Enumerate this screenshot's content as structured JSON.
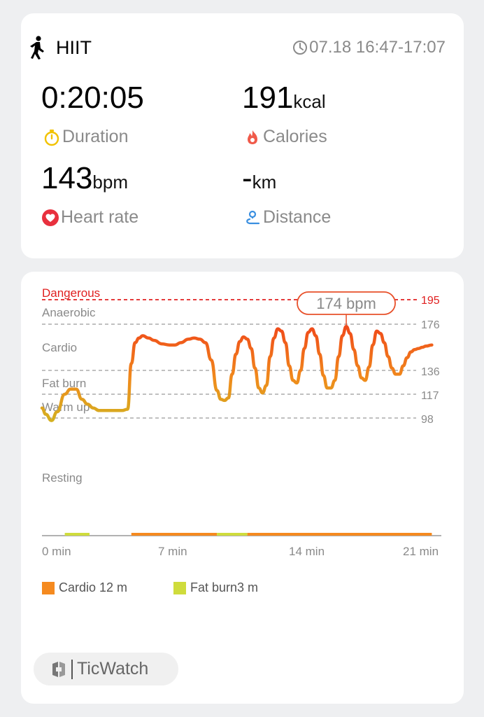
{
  "summary": {
    "activity_name": "HIIT",
    "activity_icon": "running-person-icon",
    "session_time": "07.18 16:47-17:07",
    "duration": {
      "value": "0:20:05",
      "label": "Duration",
      "icon": "stopwatch-icon",
      "icon_color": "#f2c200"
    },
    "calories": {
      "value": "191",
      "unit": "kcal",
      "label": "Calories",
      "icon": "flame-icon",
      "icon_color": "#f05a4a"
    },
    "heart_rate": {
      "value": "143",
      "unit": "bpm",
      "label": "Heart rate",
      "icon": "heart-icon",
      "icon_color": "#e8303e"
    },
    "distance": {
      "value": "-",
      "unit": "km",
      "label": "Distance",
      "icon": "route-icon",
      "icon_color": "#3a8fe0"
    }
  },
  "chart": {
    "zone_labels": {
      "dangerous": "Dangerous",
      "anaerobic": "Anaerobic",
      "cardio": "Cardio",
      "fat_burn": "Fat burn",
      "warm_up": "Warm up",
      "resting": "Resting"
    },
    "threshold_labels": {
      "t195": "195",
      "t176": "176",
      "t136": "136",
      "t117": "117",
      "t98": "98"
    },
    "x_labels": {
      "x0": "0 min",
      "x7": "7 min",
      "x14": "14 min",
      "x21": "21 min"
    },
    "peak_label": "174 bpm",
    "danger_color": "#e02020",
    "line_colors": {
      "low": "#d4b020",
      "mid": "#f08a1c",
      "high": "#f04a1a"
    }
  },
  "chart_data": {
    "type": "line",
    "title": "",
    "xlabel": "",
    "ylabel": "",
    "x_unit": "min",
    "xlim": [
      0,
      21
    ],
    "zones": [
      {
        "name": "Dangerous",
        "min_bpm": 195
      },
      {
        "name": "Anaerobic",
        "min_bpm": 176
      },
      {
        "name": "Cardio",
        "min_bpm": 136
      },
      {
        "name": "Fat burn",
        "min_bpm": 117
      },
      {
        "name": "Warm up",
        "min_bpm": 98
      },
      {
        "name": "Resting"
      }
    ],
    "series": [
      {
        "x": [
          0,
          0.2,
          0.5,
          0.8,
          1.2,
          1.5,
          1.8,
          2.1,
          2.4,
          2.7,
          3.0,
          3.3,
          3.6,
          3.9,
          4.2,
          4.5,
          4.7,
          4.9,
          5.1,
          5.3,
          5.6,
          5.9,
          6.3,
          6.7,
          7.0,
          7.3,
          7.7,
          8.0,
          8.3,
          8.6,
          8.9,
          9.2,
          9.4,
          9.6,
          9.8,
          10.0,
          10.2,
          10.4,
          10.6,
          10.8,
          11.0,
          11.2,
          11.4,
          11.6,
          11.8,
          12.0,
          12.2,
          12.4,
          12.6,
          12.8,
          13.0,
          13.2,
          13.4,
          13.6,
          13.8,
          14.0,
          14.2,
          14.4,
          14.6,
          14.8,
          15.0,
          15.2,
          15.4,
          15.6,
          15.8,
          16.0,
          16.2,
          16.4,
          16.6,
          16.8,
          17.0,
          17.2,
          17.4,
          17.6,
          17.8,
          18.0,
          18.2,
          18.4,
          18.6,
          18.8,
          19.0,
          19.2,
          19.4,
          19.6,
          19.8,
          20.0,
          20.2,
          20.5
        ],
        "y": [
          106,
          101,
          96,
          103,
          117,
          121,
          121,
          113,
          109,
          106,
          104,
          104,
          104,
          104,
          104,
          105,
          142,
          160,
          164,
          166,
          164,
          162,
          159,
          158,
          158,
          160,
          163,
          164,
          163,
          160,
          145,
          120,
          113,
          112,
          114,
          133,
          150,
          161,
          165,
          163,
          155,
          138,
          122,
          118,
          124,
          148,
          164,
          172,
          170,
          160,
          140,
          128,
          126,
          136,
          155,
          169,
          172,
          166,
          150,
          132,
          122,
          122,
          128,
          148,
          166,
          174,
          168,
          154,
          140,
          130,
          128,
          139,
          158,
          170,
          168,
          160,
          148,
          138,
          133,
          133,
          140,
          147,
          152,
          154,
          155,
          156,
          157,
          158
        ]
      }
    ],
    "peak_value": 174,
    "threshold_values": [
      195,
      176,
      136,
      117,
      98
    ],
    "zone_bar": [
      {
        "zone": "Fat burn",
        "start": 1.2,
        "end": 2.5
      },
      {
        "zone": "Cardio",
        "start": 4.7,
        "end": 9.2
      },
      {
        "zone": "Fat burn",
        "start": 9.2,
        "end": 10.8
      },
      {
        "zone": "Cardio",
        "start": 10.8,
        "end": 20.5
      }
    ],
    "legend": [
      {
        "label": "Cardio 12 m",
        "color": "#f58a1f"
      },
      {
        "label": "Fat burn3 m",
        "color": "#cfdc3c"
      }
    ]
  },
  "brand": {
    "name": "TicWatch",
    "icon": "ticwatch-logo-icon"
  }
}
